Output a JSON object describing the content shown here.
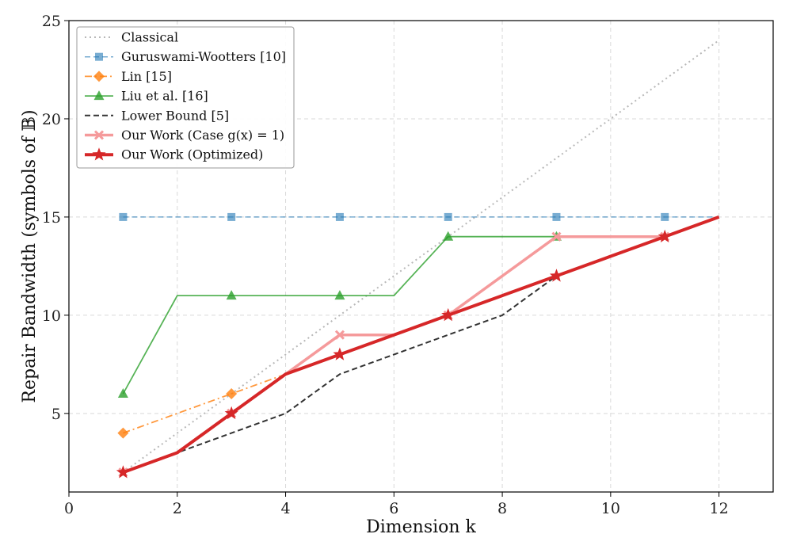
{
  "chart_data": {
    "type": "line",
    "title": "",
    "xlabel": "Dimension k",
    "ylabel": "Repair Bandwidth (symbols of 𝔹)",
    "xlim": [
      0,
      13
    ],
    "ylim": [
      1,
      25
    ],
    "xticks": [
      0,
      2,
      4,
      6,
      8,
      10,
      12
    ],
    "yticks": [
      5,
      10,
      15,
      20,
      25
    ],
    "grid": true,
    "legend_position": "top-left",
    "series": [
      {
        "name": "Classical",
        "color": "#b8b8b8",
        "dash": "dotted",
        "marker": "none",
        "width": 2,
        "x": [
          1,
          2,
          3,
          4,
          5,
          6,
          7,
          8,
          9,
          10,
          11,
          12
        ],
        "y": [
          2,
          4,
          6,
          8,
          10,
          12,
          14,
          16,
          18,
          20,
          22,
          24
        ]
      },
      {
        "name": "Guruswami-Wootters [10]",
        "color": "#1f77b4",
        "dash": "dashed",
        "marker": "square",
        "width": 1.5,
        "opacity": 0.6,
        "x": [
          1,
          3,
          5,
          7,
          9,
          11,
          12
        ],
        "y": [
          15,
          15,
          15,
          15,
          15,
          15,
          15
        ],
        "marker_x": [
          1,
          3,
          5,
          7,
          9,
          11
        ]
      },
      {
        "name": "Lin [15]",
        "color": "#ff7f0e",
        "dash": "dashdot",
        "marker": "diamond",
        "width": 1.8,
        "opacity": 0.8,
        "x": [
          1,
          3,
          4
        ],
        "y": [
          4,
          6,
          7
        ],
        "marker_x": [
          1,
          3
        ]
      },
      {
        "name": "Liu et al. [16]",
        "color": "#2ca02c",
        "dash": "solid",
        "marker": "triangle",
        "width": 1.8,
        "opacity": 0.8,
        "x": [
          1,
          2,
          3,
          4,
          5,
          6,
          7,
          8,
          9
        ],
        "y": [
          6,
          11,
          11,
          11,
          11,
          11,
          14,
          14,
          14
        ],
        "marker_x": [
          1,
          3,
          5,
          7,
          9
        ]
      },
      {
        "name": "Lower Bound [5]",
        "color": "#333333",
        "dash": "dashed",
        "marker": "none",
        "width": 2,
        "x": [
          1,
          2,
          3,
          4,
          5,
          6,
          7,
          8,
          9,
          10,
          11,
          12
        ],
        "y": [
          2,
          3,
          4,
          5,
          7,
          8,
          9,
          10,
          12,
          13,
          14,
          15
        ]
      },
      {
        "name": "Our Work (Case g(x) = 1)",
        "color": "#f59a9b",
        "dash": "solid",
        "marker": "x",
        "width": 3.5,
        "x": [
          1,
          2,
          3,
          4,
          5,
          6,
          7,
          8,
          9,
          10,
          11,
          12
        ],
        "y": [
          2,
          3,
          5,
          7,
          9,
          9,
          10,
          12,
          14,
          14,
          14,
          15
        ],
        "marker_x": [
          1,
          3,
          5,
          7,
          9,
          11
        ]
      },
      {
        "name": "Our Work (Optimized)",
        "color": "#d62728",
        "dash": "solid",
        "marker": "star",
        "width": 4,
        "x": [
          1,
          2,
          3,
          4,
          5,
          6,
          7,
          8,
          9,
          10,
          11,
          12
        ],
        "y": [
          2,
          3,
          5,
          7,
          8,
          9,
          10,
          11,
          12,
          13,
          14,
          15
        ],
        "marker_x": [
          1,
          3,
          5,
          7,
          9,
          11
        ]
      }
    ]
  }
}
